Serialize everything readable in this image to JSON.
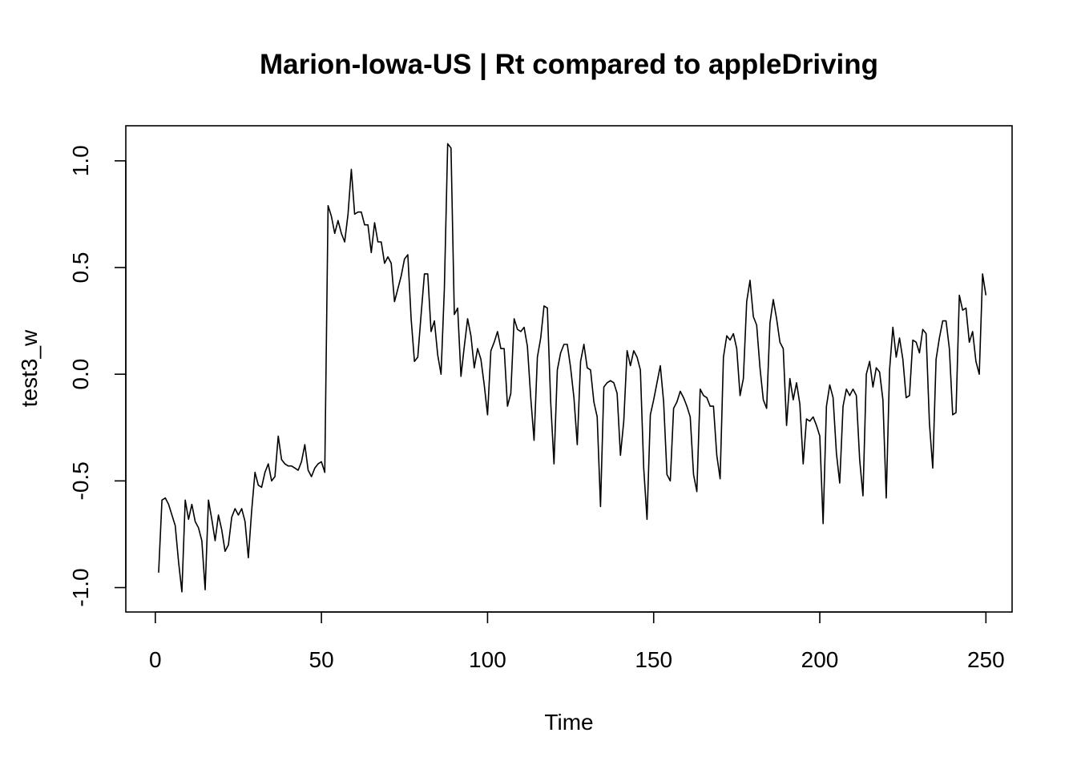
{
  "chart_data": {
    "type": "line",
    "title": "Marion-Iowa-US | Rt compared to appleDriving",
    "xlabel": "Time",
    "ylabel": "test3_w",
    "xlim": [
      1,
      248
    ],
    "ylim": [
      -1.03,
      1.08
    ],
    "x_ticks": [
      0,
      50,
      100,
      150,
      200,
      250
    ],
    "y_ticks": [
      -1.0,
      -0.5,
      0.0,
      0.5,
      1.0
    ],
    "x_tick_labels": [
      "0",
      "50",
      "100",
      "150",
      "200",
      "250"
    ],
    "y_tick_labels": [
      "-1.0",
      "-0.5",
      "0.0",
      "0.5",
      "1.0"
    ],
    "grid": false,
    "color": "#000000",
    "series": [
      {
        "x_start": 1,
        "values": [
          -0.93,
          -0.59,
          -0.58,
          -0.61,
          -0.66,
          -0.71,
          -0.88,
          -1.02,
          -0.59,
          -0.68,
          -0.61,
          -0.69,
          -0.72,
          -0.78,
          -1.01,
          -0.59,
          -0.68,
          -0.78,
          -0.66,
          -0.73,
          -0.83,
          -0.8,
          -0.67,
          -0.63,
          -0.66,
          -0.63,
          -0.69,
          -0.86,
          -0.64,
          -0.46,
          -0.52,
          -0.53,
          -0.46,
          -0.42,
          -0.5,
          -0.48,
          -0.29,
          -0.4,
          -0.42,
          -0.43,
          -0.43,
          -0.44,
          -0.45,
          -0.41,
          -0.33,
          -0.45,
          -0.48,
          -0.44,
          -0.42,
          -0.41,
          -0.46,
          0.79,
          0.74,
          0.66,
          0.72,
          0.66,
          0.62,
          0.75,
          0.96,
          0.75,
          0.76,
          0.76,
          0.7,
          0.7,
          0.57,
          0.71,
          0.62,
          0.62,
          0.52,
          0.55,
          0.52,
          0.34,
          0.4,
          0.46,
          0.54,
          0.56,
          0.26,
          0.06,
          0.08,
          0.28,
          0.47,
          0.47,
          0.2,
          0.25,
          0.09,
          0.0,
          0.4,
          1.08,
          1.06,
          0.28,
          0.31,
          -0.01,
          0.13,
          0.26,
          0.18,
          0.03,
          0.12,
          0.07,
          -0.05,
          -0.19,
          0.11,
          0.15,
          0.2,
          0.12,
          0.12,
          -0.15,
          -0.09,
          0.26,
          0.21,
          0.2,
          0.22,
          0.13,
          -0.11,
          -0.31,
          0.08,
          0.17,
          0.32,
          0.31,
          -0.13,
          -0.42,
          0.02,
          0.1,
          0.14,
          0.14,
          0.03,
          -0.11,
          -0.33,
          0.06,
          0.14,
          0.03,
          0.02,
          -0.13,
          -0.2,
          -0.62,
          -0.06,
          -0.04,
          -0.03,
          -0.04,
          -0.09,
          -0.38,
          -0.22,
          0.11,
          0.04,
          0.11,
          0.08,
          0.02,
          -0.44,
          -0.68,
          -0.19,
          -0.12,
          -0.04,
          0.04,
          -0.13,
          -0.47,
          -0.5,
          -0.16,
          -0.13,
          -0.08,
          -0.11,
          -0.15,
          -0.2,
          -0.47,
          -0.55,
          -0.07,
          -0.1,
          -0.11,
          -0.15,
          -0.15,
          -0.38,
          -0.49,
          0.08,
          0.18,
          0.16,
          0.19,
          0.12,
          -0.1,
          -0.02,
          0.34,
          0.44,
          0.27,
          0.23,
          0.03,
          -0.12,
          -0.16,
          0.24,
          0.35,
          0.26,
          0.15,
          0.12,
          -0.24,
          -0.02,
          -0.12,
          -0.04,
          -0.14,
          -0.42,
          -0.21,
          -0.22,
          -0.2,
          -0.24,
          -0.29,
          -0.7,
          -0.15,
          -0.05,
          -0.11,
          -0.37,
          -0.51,
          -0.15,
          -0.07,
          -0.1,
          -0.07,
          -0.1,
          -0.4,
          -0.57,
          0.0,
          0.06,
          -0.06,
          0.03,
          0.01,
          -0.12,
          -0.58,
          0.02,
          0.22,
          0.08,
          0.17,
          0.07,
          -0.11,
          -0.1,
          0.16,
          0.15,
          0.1,
          0.21,
          0.19,
          -0.23,
          -0.44,
          0.07,
          0.17,
          0.25,
          0.25,
          0.12,
          -0.19,
          -0.18,
          0.37,
          0.3,
          0.31,
          0.15,
          0.2,
          0.06,
          0.0,
          0.47,
          0.37
        ]
      }
    ]
  }
}
